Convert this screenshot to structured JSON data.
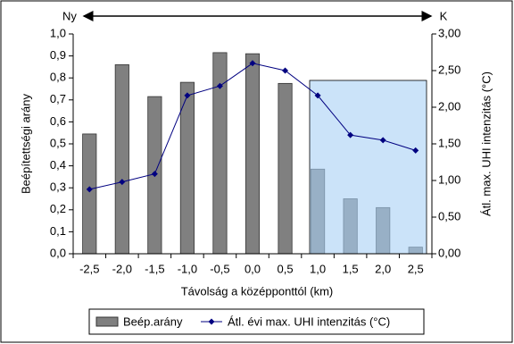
{
  "chart_data": {
    "type": "bar",
    "annotations": [
      "Ny",
      "K"
    ],
    "x_label": "Távolság a középponttól (km)",
    "y_label": "Beépítettségi arány",
    "y2_label": "Átl. max. UHI intenzitás (°C)",
    "categories": [
      "-2,5",
      "-2,0",
      "-1,5",
      "-1,0",
      "-0,5",
      "0,0",
      "0,5",
      "1,0",
      "1,5",
      "2,0",
      "2,5"
    ],
    "series": [
      {
        "name": "Beép.arány",
        "type": "bar",
        "color": "#808080",
        "values": [
          0.545,
          0.86,
          0.715,
          0.78,
          0.915,
          0.91,
          0.775,
          0.385,
          0.25,
          0.21,
          0.03
        ]
      },
      {
        "name": "Átl. évi max. UHI intenzitás (°C)",
        "type": "line",
        "axis": "y2",
        "color": "#000080",
        "values": [
          0.88,
          0.98,
          1.09,
          2.16,
          2.29,
          2.6,
          2.5,
          2.16,
          1.62,
          1.55,
          1.41
        ]
      }
    ],
    "ylim": [
      0,
      1
    ],
    "yticks": [
      {
        "value": 0,
        "label": "0,0"
      },
      {
        "value": 0.1,
        "label": "0,1"
      },
      {
        "value": 0.2,
        "label": "0,2"
      },
      {
        "value": 0.3,
        "label": "0,3"
      },
      {
        "value": 0.4,
        "label": "0,4"
      },
      {
        "value": 0.5,
        "label": "0,5"
      },
      {
        "value": 0.6,
        "label": "0,6"
      },
      {
        "value": 0.7,
        "label": "0,7"
      },
      {
        "value": 0.8,
        "label": "0,8"
      },
      {
        "value": 0.9,
        "label": "0,9"
      },
      {
        "value": 1,
        "label": "1,0"
      }
    ],
    "y2lim": [
      0,
      3
    ],
    "y2ticks": [
      {
        "value": 0,
        "label": "0,00"
      },
      {
        "value": 0.5,
        "label": "0,50"
      },
      {
        "value": 1,
        "label": "1,00"
      },
      {
        "value": 1.5,
        "label": "1,50"
      },
      {
        "value": 2,
        "label": "2,00"
      },
      {
        "value": 2.5,
        "label": "2,50"
      },
      {
        "value": 3,
        "label": "3,00"
      }
    ],
    "grid": false
  }
}
